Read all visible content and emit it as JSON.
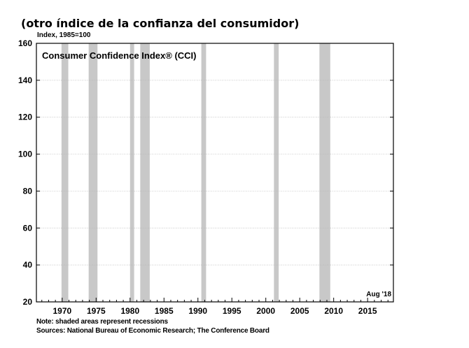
{
  "header": {
    "title": "(otro índice de la confianza del consumidor)"
  },
  "footer": {
    "note": "Note: shaded areas represent recessions",
    "sources": "Sources: National Bureau of Economic Research; The Conference Board"
  },
  "chart_data": {
    "type": "line",
    "title": "Consumer Confidence Index® (CCI)",
    "ylabel": "Index, 1985=100",
    "xlabel": "",
    "annotation": "Aug '18",
    "xlim": [
      1966.2,
      2018.8
    ],
    "ylim": [
      20,
      160
    ],
    "yticks": [
      20,
      40,
      60,
      80,
      100,
      120,
      140,
      160
    ],
    "xticks": [
      1970,
      1975,
      1980,
      1985,
      1990,
      1995,
      2000,
      2005,
      2010,
      2015
    ],
    "grid": true,
    "legend": "none",
    "colors": {
      "recession": "#c8c8c8",
      "grid": "#b4b4b4",
      "axis": "#000000"
    },
    "recessions": [
      {
        "start": 1969.9,
        "end": 1970.9
      },
      {
        "start": 1973.9,
        "end": 1975.2
      },
      {
        "start": 1980.0,
        "end": 1980.6
      },
      {
        "start": 1981.5,
        "end": 1982.9
      },
      {
        "start": 1990.5,
        "end": 1991.2
      },
      {
        "start": 2001.2,
        "end": 2001.9
      },
      {
        "start": 2007.9,
        "end": 2009.5
      }
    ],
    "series": []
  }
}
